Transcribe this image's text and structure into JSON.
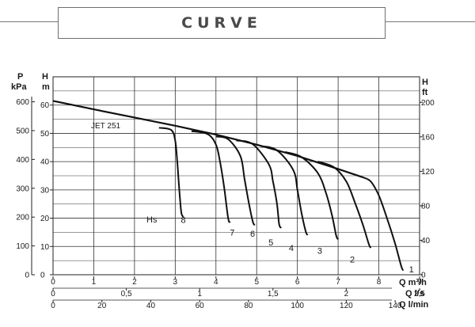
{
  "header": {
    "title": "CURVE"
  },
  "chart_data": {
    "type": "line",
    "title": "",
    "model_label": "JET 251",
    "left_axes": {
      "pressure": {
        "label": "P",
        "unit": "kPa",
        "ticks": [
          0,
          100,
          200,
          300,
          400,
          500,
          600
        ]
      },
      "head": {
        "label": "H",
        "unit": "m",
        "ticks": [
          0,
          10,
          20,
          30,
          40,
          50,
          60
        ],
        "ylim": [
          0,
          70
        ]
      }
    },
    "right_axis": {
      "label": "H",
      "unit": "ft",
      "ticks": [
        0,
        40,
        80,
        120,
        160,
        200
      ]
    },
    "x_axes": [
      {
        "id": "m3h",
        "label": "Q m³/h",
        "xlim": [
          0,
          9
        ],
        "ticks": [
          {
            "v": 0,
            "t": "0"
          },
          {
            "v": 1,
            "t": "1"
          },
          {
            "v": 2,
            "t": "2"
          },
          {
            "v": 3,
            "t": "3"
          },
          {
            "v": 4,
            "t": "4"
          },
          {
            "v": 5,
            "t": "5"
          },
          {
            "v": 6,
            "t": "6"
          },
          {
            "v": 7,
            "t": "7"
          },
          {
            "v": 8,
            "t": "8"
          },
          {
            "v": 9,
            "t": "9"
          }
        ]
      },
      {
        "id": "ls",
        "label": "Q l/s",
        "xlim": [
          0,
          2.5
        ],
        "ticks": [
          {
            "v": 0,
            "t": "0"
          },
          {
            "v": 0.5,
            "t": "0,5"
          },
          {
            "v": 1,
            "t": "1"
          },
          {
            "v": 1.5,
            "t": "1,5"
          },
          {
            "v": 2,
            "t": "2"
          },
          {
            "v": 2.5,
            "t": "2,5"
          }
        ]
      },
      {
        "id": "lmin",
        "label": "Q l/min",
        "xlim": [
          0,
          150
        ],
        "ticks": [
          {
            "v": 0,
            "t": "0"
          },
          {
            "v": 20,
            "t": "20"
          },
          {
            "v": 40,
            "t": "40"
          },
          {
            "v": 60,
            "t": "60"
          },
          {
            "v": 80,
            "t": "80"
          },
          {
            "v": 100,
            "t": "100"
          },
          {
            "v": 120,
            "t": "120"
          },
          {
            "v": 140,
            "t": "140"
          }
        ]
      }
    ],
    "suction_label": "Hs",
    "envelope": [
      [
        0,
        61.5
      ],
      [
        1,
        58.5
      ],
      [
        2,
        55.6
      ],
      [
        3,
        52.7
      ],
      [
        4,
        49.6
      ],
      [
        5,
        46.0
      ],
      [
        6,
        42.0
      ],
      [
        7,
        37.4
      ],
      [
        7.6,
        34.5
      ]
    ],
    "series": [
      {
        "name": "8",
        "points": [
          [
            2.6,
            52.0
          ],
          [
            2.9,
            51.2
          ],
          [
            3.0,
            47.5
          ],
          [
            3.05,
            40.0
          ],
          [
            3.1,
            30.0
          ],
          [
            3.15,
            22.0
          ],
          [
            3.2,
            20.5
          ]
        ],
        "label_at": [
          3.2,
          19.5
        ]
      },
      {
        "name": "7",
        "points": [
          [
            3.4,
            50.8
          ],
          [
            3.8,
            49.7
          ],
          [
            4.0,
            46.0
          ],
          [
            4.1,
            40.0
          ],
          [
            4.2,
            31.0
          ],
          [
            4.3,
            20.0
          ],
          [
            4.35,
            18.5
          ]
        ],
        "label_at": [
          4.4,
          15.0
        ]
      },
      {
        "name": "6",
        "points": [
          [
            4.0,
            48.9
          ],
          [
            4.3,
            47.9
          ],
          [
            4.6,
            42.0
          ],
          [
            4.7,
            34.0
          ],
          [
            4.8,
            26.0
          ],
          [
            4.9,
            19.0
          ],
          [
            4.95,
            17.5
          ]
        ],
        "label_at": [
          4.9,
          14.5
        ]
      },
      {
        "name": "5",
        "points": [
          [
            4.5,
            47.5
          ],
          [
            4.9,
            46.2
          ],
          [
            5.3,
            39.0
          ],
          [
            5.4,
            33.0
          ],
          [
            5.5,
            25.0
          ],
          [
            5.55,
            18.0
          ],
          [
            5.6,
            16.5
          ]
        ],
        "label_at": [
          5.35,
          11.5
        ]
      },
      {
        "name": "4",
        "points": [
          [
            5.1,
            45.5
          ],
          [
            5.5,
            44.0
          ],
          [
            5.9,
            37.0
          ],
          [
            6.0,
            30.0
          ],
          [
            6.1,
            22.0
          ],
          [
            6.2,
            15.5
          ],
          [
            6.25,
            14.0
          ]
        ],
        "label_at": [
          5.85,
          9.5
        ]
      },
      {
        "name": "3",
        "points": [
          [
            5.7,
            43.4
          ],
          [
            6.1,
            41.6
          ],
          [
            6.5,
            36.0
          ],
          [
            6.7,
            29.0
          ],
          [
            6.85,
            21.0
          ],
          [
            6.95,
            14.0
          ],
          [
            7.0,
            12.5
          ]
        ],
        "label_at": [
          6.55,
          8.5
        ]
      },
      {
        "name": "2",
        "points": [
          [
            6.5,
            40.0
          ],
          [
            6.9,
            38.0
          ],
          [
            7.2,
            33.0
          ],
          [
            7.4,
            26.0
          ],
          [
            7.6,
            18.0
          ],
          [
            7.75,
            11.0
          ],
          [
            7.8,
            9.5
          ]
        ],
        "label_at": [
          7.35,
          5.5
        ]
      },
      {
        "name": "1",
        "points": [
          [
            7.6,
            34.5
          ],
          [
            7.8,
            33.0
          ],
          [
            8.0,
            28.0
          ],
          [
            8.2,
            20.0
          ],
          [
            8.4,
            11.0
          ],
          [
            8.55,
            3.0
          ],
          [
            8.6,
            1.5
          ]
        ],
        "label_at": [
          8.8,
          2.0
        ]
      }
    ]
  }
}
